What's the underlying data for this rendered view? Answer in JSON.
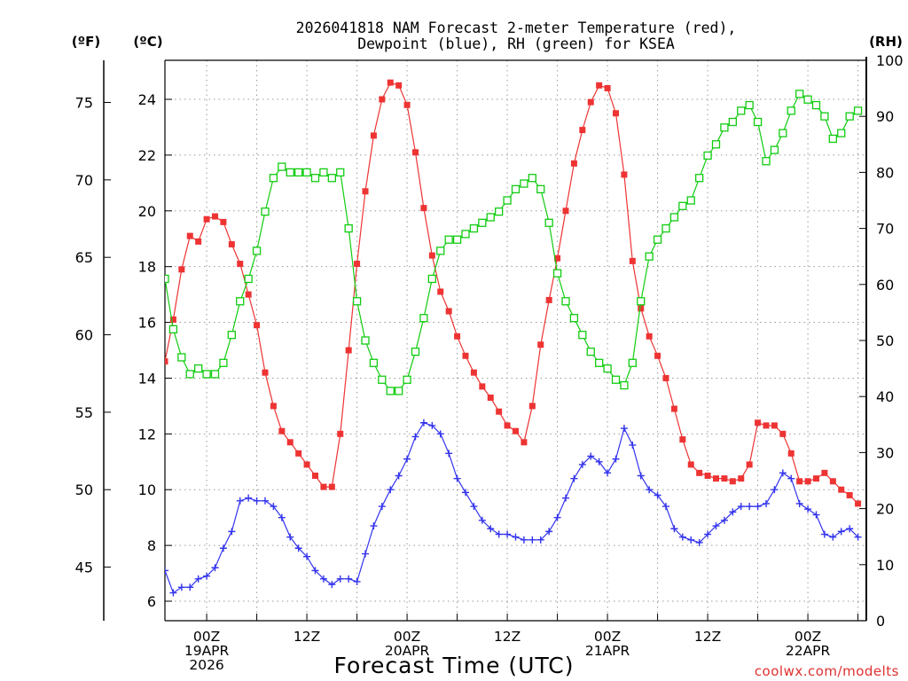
{
  "chart_data": {
    "type": "line",
    "title": [
      "2026041818 NAM Forecast 2-meter Temperature (red),",
      "Dewpoint (blue), RH (green) for KSEA"
    ],
    "xlabel": "Forecast Time (UTC)",
    "units": {
      "fahrenheit": "(ºF)",
      "celsius": "(ºC)",
      "rh": "(RH)"
    },
    "watermark": "coolwx.com/modelts",
    "xlim": [
      -5,
      79
    ],
    "x_ticks": [
      {
        "x": 0,
        "lines": [
          "00Z",
          "19APR",
          "2026"
        ]
      },
      {
        "x": 12,
        "lines": [
          "12Z"
        ]
      },
      {
        "x": 24,
        "lines": [
          "00Z",
          "20APR"
        ]
      },
      {
        "x": 36,
        "lines": [
          "12Z"
        ]
      },
      {
        "x": 48,
        "lines": [
          "00Z",
          "21APR"
        ]
      },
      {
        "x": 60,
        "lines": [
          "12Z"
        ]
      },
      {
        "x": 72,
        "lines": [
          "00Z",
          "22APR"
        ]
      }
    ],
    "grid": true,
    "temp_axis_c": {
      "range": [
        5.3,
        25.4
      ],
      "ticks": [
        6,
        8,
        10,
        12,
        14,
        16,
        18,
        20,
        22,
        24
      ]
    },
    "temp_axis_f": {
      "range": [
        41.54,
        77.72
      ],
      "ticks": [
        45,
        50,
        55,
        60,
        65,
        70,
        75
      ]
    },
    "rh_axis": {
      "range": [
        0,
        100
      ],
      "ticks": [
        0,
        10,
        20,
        30,
        40,
        50,
        60,
        70,
        80,
        90,
        100
      ]
    },
    "x": [
      -6,
      -5,
      -4,
      -3,
      -2,
      -1,
      0,
      1,
      2,
      3,
      4,
      5,
      6,
      7,
      8,
      9,
      10,
      11,
      12,
      13,
      14,
      15,
      16,
      17,
      18,
      19,
      20,
      21,
      22,
      23,
      24,
      25,
      26,
      27,
      28,
      29,
      30,
      31,
      32,
      33,
      34,
      35,
      36,
      37,
      38,
      39,
      40,
      41,
      42,
      43,
      44,
      45,
      46,
      47,
      48,
      49,
      50,
      51,
      52,
      53,
      54,
      55,
      56,
      57,
      58,
      59,
      60,
      61,
      62,
      63,
      64,
      65,
      66,
      67,
      68,
      69,
      70,
      71,
      72,
      73,
      74,
      75,
      76,
      77,
      78
    ],
    "series": [
      {
        "name": "Temperature",
        "axis": "celsius",
        "color": "#ee3333",
        "marker": "filled-square",
        "values": [
          14.6,
          14.6,
          16.1,
          17.9,
          19.1,
          18.9,
          19.7,
          19.8,
          19.6,
          18.8,
          18.1,
          17.0,
          15.9,
          14.2,
          13.0,
          12.1,
          11.7,
          11.3,
          10.9,
          10.5,
          10.1,
          10.1,
          12.0,
          15.0,
          18.1,
          20.7,
          22.7,
          24.0,
          24.6,
          24.5,
          23.8,
          22.1,
          20.1,
          18.4,
          17.1,
          16.4,
          15.5,
          14.8,
          14.2,
          13.7,
          13.3,
          12.8,
          12.3,
          12.1,
          11.7,
          13.0,
          15.2,
          16.8,
          18.3,
          20.0,
          21.7,
          22.9,
          23.9,
          24.5,
          24.4,
          23.5,
          21.3,
          18.2,
          16.5,
          15.5,
          14.8,
          14.0,
          12.9,
          11.8,
          10.9,
          10.6,
          10.5,
          10.4,
          10.4,
          10.3,
          10.4,
          10.9,
          12.4,
          12.3,
          12.3,
          12.0,
          11.3,
          10.3,
          10.3,
          10.4,
          10.6,
          10.3,
          10.0,
          9.8,
          9.5
        ]
      },
      {
        "name": "Dewpoint",
        "axis": "celsius",
        "color": "#3333ee",
        "marker": "plus",
        "values": [
          7.7,
          7.1,
          6.3,
          6.5,
          6.5,
          6.8,
          6.9,
          7.2,
          7.9,
          8.5,
          9.6,
          9.7,
          9.6,
          9.6,
          9.4,
          9.0,
          8.3,
          7.9,
          7.6,
          7.1,
          6.8,
          6.6,
          6.8,
          6.8,
          6.7,
          7.7,
          8.7,
          9.4,
          10.0,
          10.5,
          11.1,
          11.9,
          12.4,
          12.3,
          12.0,
          11.3,
          10.4,
          9.9,
          9.4,
          8.9,
          8.6,
          8.4,
          8.4,
          8.3,
          8.2,
          8.2,
          8.2,
          8.5,
          9.0,
          9.7,
          10.4,
          10.9,
          11.2,
          11.0,
          10.6,
          11.1,
          12.2,
          11.6,
          10.5,
          10.0,
          9.8,
          9.4,
          8.6,
          8.3,
          8.2,
          8.1,
          8.4,
          8.7,
          8.9,
          9.2,
          9.4,
          9.4,
          9.4,
          9.5,
          10.0,
          10.6,
          10.4,
          9.5,
          9.3,
          9.1,
          8.4,
          8.3,
          8.5,
          8.6,
          8.3
        ]
      },
      {
        "name": "RH",
        "axis": "rh",
        "color": "#11cc11",
        "marker": "open-square",
        "values": [
          61,
          61,
          52,
          47,
          44,
          45,
          44,
          44,
          46,
          51,
          57,
          61,
          66,
          73,
          79,
          81,
          80,
          80,
          80,
          79,
          80,
          79,
          80,
          70,
          57,
          50,
          46,
          43,
          41,
          41,
          43,
          48,
          54,
          61,
          66,
          68,
          68,
          69,
          70,
          71,
          72,
          73,
          75,
          77,
          78,
          79,
          77,
          71,
          62,
          57,
          54,
          51,
          48,
          46,
          45,
          43,
          42,
          46,
          57,
          65,
          68,
          70,
          72,
          74,
          75,
          79,
          83,
          85,
          88,
          89,
          91,
          92,
          89,
          82,
          84,
          87,
          91,
          94,
          93,
          92,
          90,
          86,
          87,
          90,
          91
        ]
      }
    ]
  }
}
